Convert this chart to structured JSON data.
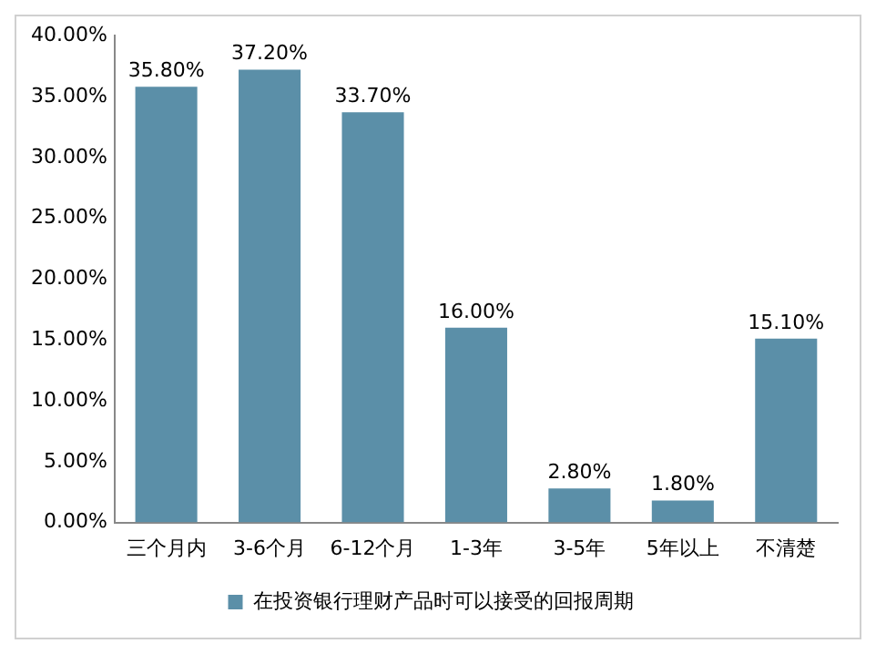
{
  "chart_data": {
    "type": "bar",
    "categories": [
      "三个月内",
      "3-6个月",
      "6-12个月",
      "1-3年",
      "3-5年",
      "5年以上",
      "不清楚"
    ],
    "series": [
      {
        "name": "在投资银行理财产品时可以接受的回报周期",
        "color": "#5b8fa8",
        "values": [
          35.8,
          37.2,
          33.7,
          16.0,
          2.8,
          1.8,
          15.1
        ],
        "value_labels": [
          "35.80%",
          "37.20%",
          "33.70%",
          "16.00%",
          "2.80%",
          "1.80%",
          "15.10%"
        ]
      }
    ],
    "ylim": [
      0,
      40
    ],
    "yticks": [
      {
        "value": 0,
        "label": "0.00%"
      },
      {
        "value": 5,
        "label": "5.00%"
      },
      {
        "value": 10,
        "label": "10.00%"
      },
      {
        "value": 15,
        "label": "15.00%"
      },
      {
        "value": 20,
        "label": "20.00%"
      },
      {
        "value": 25,
        "label": "25.00%"
      },
      {
        "value": 30,
        "label": "30.00%"
      },
      {
        "value": 35,
        "label": "35.00%"
      },
      {
        "value": 40,
        "label": "40.00%"
      }
    ],
    "grid": false,
    "legend": "bottom"
  }
}
